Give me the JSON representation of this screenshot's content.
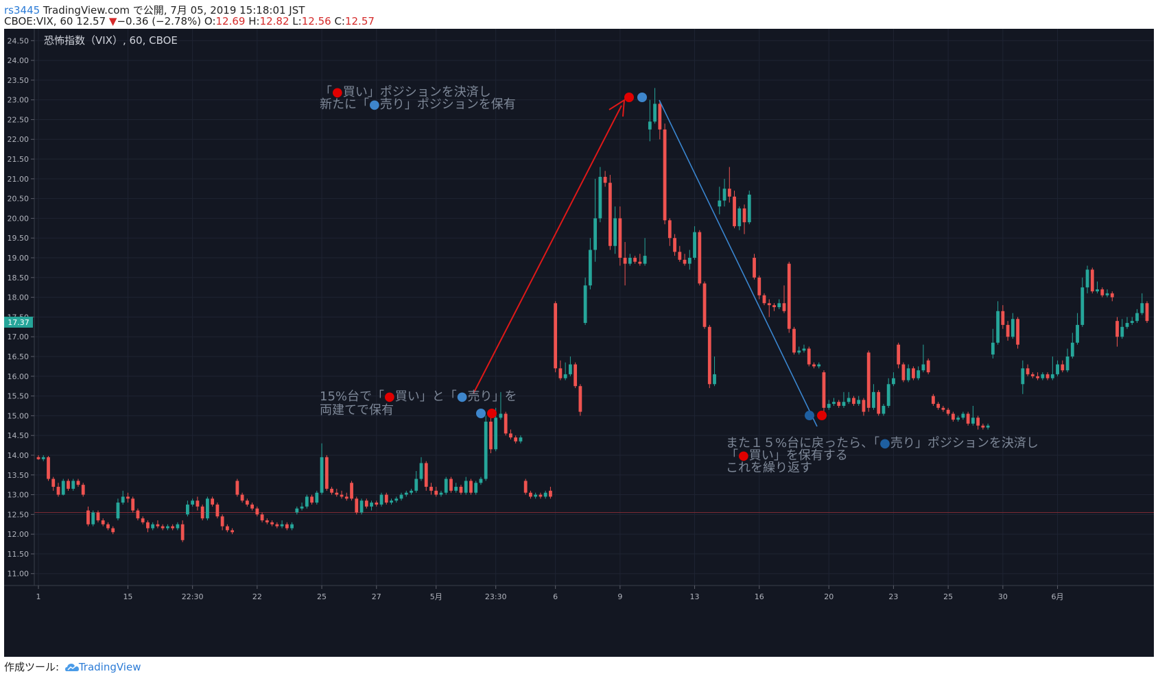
{
  "header": {
    "user": "rs3445",
    "published": " TradingView.com で公開, 7月 05, 2019 15:18:01 JST",
    "symbol": "CBOE:VIX, 60 12.57",
    "arrow": "▼",
    "change": "−0.36 (−2.78%)",
    "o_label": " O:",
    "o_value": "12.69",
    "h_label": " H:",
    "h_value": "12.82",
    "l_label": " L:",
    "l_value": "12.56",
    "c_label": " C:",
    "c_value": "12.57"
  },
  "footer": {
    "prefix": "作成ツール: ",
    "brand": "TradingView"
  },
  "chart_data": {
    "type": "candlestick",
    "title": "恐怖指数（VIX）, 60, CBOE",
    "ylim": [
      10.7,
      24.8
    ],
    "y_ticks": [
      "11.00",
      "11.50",
      "12.00",
      "12.50",
      "13.00",
      "13.50",
      "14.00",
      "14.50",
      "15.00",
      "15.50",
      "16.00",
      "16.50",
      "17.00",
      "17.50",
      "18.00",
      "18.50",
      "19.00",
      "19.50",
      "20.00",
      "20.50",
      "21.00",
      "21.50",
      "22.00",
      "22.50",
      "23.00",
      "23.50",
      "24.00",
      "24.50"
    ],
    "x_ticks": [
      {
        "label": "1",
        "i": 0
      },
      {
        "label": "15",
        "i": 18
      },
      {
        "label": "22:30",
        "i": 31
      },
      {
        "label": "22",
        "i": 44
      },
      {
        "label": "25",
        "i": 57
      },
      {
        "label": "27",
        "i": 68
      },
      {
        "label": "5月",
        "i": 80
      },
      {
        "label": "23:30",
        "i": 92
      },
      {
        "label": "6",
        "i": 104
      },
      {
        "label": "9",
        "i": 117
      },
      {
        "label": "13",
        "i": 132
      },
      {
        "label": "16",
        "i": 145
      },
      {
        "label": "20",
        "i": 159
      },
      {
        "label": "23",
        "i": 172
      },
      {
        "label": "25",
        "i": 183
      },
      {
        "label": "30",
        "i": 194
      },
      {
        "label": "6月",
        "i": 205
      }
    ],
    "current_price": "17.37",
    "reference_line": 12.55,
    "colors": {
      "up": "#26a69a",
      "down": "#ef5350",
      "background": "#131722",
      "buy": "#e00000",
      "sell": "#3e86cc"
    },
    "candles": [
      [
        13.95,
        13.9,
        14.0,
        13.88
      ],
      [
        13.9,
        13.95,
        14.0,
        13.85
      ],
      [
        13.95,
        13.4,
        13.98,
        13.35
      ],
      [
        13.4,
        13.2,
        13.45,
        13.1
      ],
      [
        13.2,
        13.0,
        13.3,
        12.95
      ],
      [
        13.0,
        13.35,
        13.4,
        12.98
      ],
      [
        13.35,
        13.15,
        13.4,
        13.1
      ],
      [
        13.15,
        13.35,
        13.4,
        13.1
      ],
      [
        13.35,
        13.25,
        13.4,
        13.2
      ],
      [
        13.25,
        13.0,
        13.3,
        12.95
      ],
      [
        12.6,
        12.25,
        12.7,
        12.2
      ],
      [
        12.25,
        12.55,
        12.6,
        12.2
      ],
      [
        12.55,
        12.35,
        12.6,
        12.3
      ],
      [
        12.35,
        12.25,
        12.4,
        12.2
      ],
      [
        12.25,
        12.15,
        12.3,
        12.1
      ],
      [
        12.15,
        12.05,
        12.2,
        12.0
      ],
      [
        12.4,
        12.8,
        12.9,
        12.35
      ],
      [
        12.8,
        12.95,
        13.1,
        12.75
      ],
      [
        12.95,
        12.9,
        13.05,
        12.8
      ],
      [
        12.9,
        12.6,
        12.95,
        12.55
      ],
      [
        12.6,
        12.4,
        12.65,
        12.35
      ],
      [
        12.4,
        12.3,
        12.45,
        12.25
      ],
      [
        12.3,
        12.15,
        12.35,
        12.05
      ],
      [
        12.15,
        12.25,
        12.3,
        12.1
      ],
      [
        12.25,
        12.2,
        12.35,
        12.15
      ],
      [
        12.2,
        12.15,
        12.25,
        12.1
      ],
      [
        12.15,
        12.2,
        12.25,
        12.1
      ],
      [
        12.2,
        12.15,
        12.25,
        12.1
      ],
      [
        12.15,
        12.25,
        12.3,
        12.1
      ],
      [
        12.25,
        11.85,
        12.35,
        11.8
      ],
      [
        12.5,
        12.75,
        12.85,
        12.45
      ],
      [
        12.75,
        12.85,
        12.9,
        12.7
      ],
      [
        12.85,
        12.7,
        12.95,
        12.6
      ],
      [
        12.7,
        12.4,
        12.75,
        12.35
      ],
      [
        12.4,
        12.9,
        12.95,
        12.35
      ],
      [
        12.9,
        12.75,
        12.95,
        12.7
      ],
      [
        12.75,
        12.45,
        12.8,
        12.4
      ],
      [
        12.45,
        12.2,
        12.5,
        12.1
      ],
      [
        12.2,
        12.1,
        12.25,
        12.05
      ],
      [
        12.1,
        12.05,
        12.15,
        12.0
      ],
      [
        13.35,
        13.0,
        13.4,
        12.95
      ],
      [
        13.0,
        12.85,
        13.05,
        12.8
      ],
      [
        12.85,
        12.75,
        12.9,
        12.7
      ],
      [
        12.75,
        12.65,
        12.8,
        12.6
      ],
      [
        12.65,
        12.5,
        12.7,
        12.45
      ],
      [
        12.5,
        12.35,
        12.55,
        12.3
      ],
      [
        12.35,
        12.3,
        12.4,
        12.25
      ],
      [
        12.3,
        12.25,
        12.35,
        12.2
      ],
      [
        12.25,
        12.2,
        12.3,
        12.15
      ],
      [
        12.2,
        12.25,
        12.35,
        12.15
      ],
      [
        12.25,
        12.15,
        12.3,
        12.1
      ],
      [
        12.15,
        12.25,
        12.3,
        12.1
      ],
      [
        12.55,
        12.65,
        12.7,
        12.5
      ],
      [
        12.65,
        12.7,
        12.8,
        12.6
      ],
      [
        12.7,
        12.95,
        13.0,
        12.65
      ],
      [
        12.95,
        12.8,
        13.0,
        12.75
      ],
      [
        12.8,
        13.05,
        13.1,
        12.75
      ],
      [
        13.05,
        13.95,
        14.3,
        13.0
      ],
      [
        13.95,
        13.15,
        14.0,
        13.1
      ],
      [
        13.15,
        13.05,
        13.2,
        13.0
      ],
      [
        13.05,
        13.0,
        13.15,
        12.95
      ],
      [
        13.0,
        12.95,
        13.1,
        12.9
      ],
      [
        12.95,
        12.9,
        13.05,
        12.85
      ],
      [
        13.3,
        12.9,
        13.35,
        12.85
      ],
      [
        12.9,
        12.55,
        12.95,
        12.5
      ],
      [
        12.55,
        12.85,
        12.9,
        12.5
      ],
      [
        12.85,
        12.7,
        12.9,
        12.65
      ],
      [
        12.7,
        12.8,
        12.85,
        12.6
      ],
      [
        12.8,
        12.75,
        12.85,
        12.7
      ],
      [
        12.75,
        13.0,
        13.05,
        12.7
      ],
      [
        13.0,
        12.8,
        13.05,
        12.75
      ],
      [
        12.8,
        12.85,
        12.9,
        12.75
      ],
      [
        12.85,
        12.9,
        12.95,
        12.8
      ],
      [
        12.9,
        13.0,
        13.05,
        12.85
      ],
      [
        13.0,
        13.05,
        13.1,
        12.95
      ],
      [
        13.05,
        13.1,
        13.15,
        13.0
      ],
      [
        13.1,
        13.4,
        13.6,
        13.05
      ],
      [
        13.4,
        13.8,
        13.95,
        13.35
      ],
      [
        13.8,
        13.2,
        13.85,
        13.1
      ],
      [
        13.2,
        13.1,
        13.3,
        13.0
      ],
      [
        13.1,
        13.0,
        13.2,
        12.95
      ],
      [
        13.0,
        13.05,
        13.1,
        12.95
      ],
      [
        13.05,
        13.4,
        13.45,
        13.0
      ],
      [
        13.4,
        13.1,
        13.45,
        13.05
      ],
      [
        13.1,
        13.2,
        13.3,
        13.05
      ],
      [
        13.2,
        13.05,
        13.25,
        13.0
      ],
      [
        13.05,
        13.35,
        13.45,
        13.0
      ],
      [
        13.35,
        13.05,
        13.4,
        13.0
      ],
      [
        13.05,
        13.3,
        13.35,
        13.0
      ],
      [
        13.3,
        13.4,
        13.45,
        13.25
      ],
      [
        13.4,
        14.85,
        15.0,
        13.35
      ],
      [
        14.85,
        14.15,
        14.95,
        14.05
      ],
      [
        14.15,
        14.95,
        15.2,
        14.1
      ],
      [
        14.95,
        15.05,
        15.6,
        14.9
      ],
      [
        15.05,
        14.55,
        15.1,
        14.5
      ],
      [
        14.55,
        14.45,
        14.65,
        14.4
      ],
      [
        14.45,
        14.35,
        14.5,
        14.3
      ],
      [
        14.35,
        14.45,
        14.5,
        14.3
      ],
      [
        13.35,
        13.05,
        13.4,
        13.0
      ],
      [
        13.05,
        12.95,
        13.1,
        12.9
      ],
      [
        12.95,
        13.0,
        13.05,
        12.9
      ],
      [
        13.0,
        12.95,
        13.05,
        12.9
      ],
      [
        12.95,
        13.05,
        13.1,
        12.9
      ],
      [
        13.1,
        12.95,
        13.2,
        12.9
      ],
      [
        17.85,
        16.2,
        17.9,
        16.1
      ],
      [
        16.2,
        15.95,
        16.4,
        15.9
      ],
      [
        15.95,
        16.05,
        16.35,
        15.9
      ],
      [
        16.05,
        16.3,
        16.5,
        16.0
      ],
      [
        16.3,
        15.75,
        16.35,
        15.7
      ],
      [
        15.75,
        15.1,
        15.8,
        15.0
      ],
      [
        17.35,
        18.3,
        18.5,
        17.3
      ],
      [
        18.3,
        19.2,
        19.5,
        18.2
      ],
      [
        19.2,
        20.0,
        21.0,
        18.9
      ],
      [
        20.0,
        21.05,
        21.3,
        19.9
      ],
      [
        21.05,
        20.9,
        21.2,
        20.8
      ],
      [
        20.9,
        19.3,
        21.1,
        19.2
      ],
      [
        19.3,
        20.0,
        20.3,
        19.1
      ],
      [
        20.0,
        19.0,
        20.3,
        18.8
      ],
      [
        19.0,
        18.85,
        19.4,
        18.3
      ],
      [
        18.85,
        19.0,
        19.1,
        18.8
      ],
      [
        19.0,
        18.9,
        19.05,
        18.85
      ],
      [
        18.9,
        18.85,
        19.1,
        18.8
      ],
      [
        18.85,
        19.05,
        19.5,
        18.8
      ],
      [
        22.25,
        22.45,
        23.0,
        21.95
      ],
      [
        22.45,
        22.9,
        23.3,
        22.4
      ],
      [
        22.9,
        22.25,
        22.95,
        22.0
      ],
      [
        22.25,
        19.95,
        22.4,
        19.85
      ],
      [
        19.95,
        19.5,
        20.0,
        19.3
      ],
      [
        19.5,
        19.15,
        19.6,
        19.05
      ],
      [
        19.15,
        18.95,
        19.3,
        18.9
      ],
      [
        18.95,
        18.85,
        19.1,
        18.8
      ],
      [
        18.85,
        19.0,
        19.2,
        18.7
      ],
      [
        19.0,
        19.65,
        19.8,
        18.95
      ],
      [
        19.65,
        18.35,
        19.7,
        18.3
      ],
      [
        18.35,
        17.25,
        18.4,
        17.2
      ],
      [
        17.25,
        15.8,
        17.3,
        15.7
      ],
      [
        15.8,
        16.05,
        16.5,
        15.75
      ],
      [
        20.3,
        20.45,
        20.8,
        20.1
      ],
      [
        20.45,
        20.75,
        21.0,
        20.3
      ],
      [
        20.75,
        20.55,
        21.3,
        20.4
      ],
      [
        20.55,
        19.8,
        20.7,
        19.75
      ],
      [
        19.8,
        20.25,
        20.3,
        19.7
      ],
      [
        20.25,
        19.9,
        20.35,
        19.6
      ],
      [
        19.9,
        20.6,
        20.7,
        19.85
      ],
      [
        19.0,
        18.5,
        19.1,
        18.45
      ],
      [
        18.5,
        18.05,
        18.55,
        17.95
      ],
      [
        18.05,
        17.85,
        18.1,
        17.8
      ],
      [
        17.85,
        17.8,
        17.95,
        17.5
      ],
      [
        17.8,
        17.75,
        17.85,
        17.65
      ],
      [
        17.75,
        17.85,
        17.95,
        17.7
      ],
      [
        17.85,
        17.65,
        18.3,
        17.6
      ],
      [
        18.85,
        17.2,
        18.9,
        17.1
      ],
      [
        17.2,
        16.6,
        17.25,
        16.55
      ],
      [
        16.6,
        16.65,
        16.75,
        16.55
      ],
      [
        16.65,
        16.7,
        16.8,
        16.6
      ],
      [
        16.7,
        16.3,
        16.75,
        16.25
      ],
      [
        16.3,
        16.25,
        16.35,
        16.2
      ],
      [
        16.25,
        16.3,
        16.35,
        16.2
      ],
      [
        16.1,
        15.2,
        16.15,
        15.1
      ],
      [
        15.2,
        15.3,
        15.4,
        15.15
      ],
      [
        15.3,
        15.35,
        15.45,
        15.25
      ],
      [
        15.35,
        15.25,
        15.4,
        15.2
      ],
      [
        15.25,
        15.35,
        15.6,
        15.2
      ],
      [
        15.35,
        15.45,
        15.6,
        15.3
      ],
      [
        15.45,
        15.3,
        15.5,
        15.25
      ],
      [
        15.3,
        15.4,
        15.5,
        15.25
      ],
      [
        15.4,
        15.1,
        15.45,
        15.0
      ],
      [
        16.6,
        15.2,
        16.65,
        15.1
      ],
      [
        15.2,
        15.6,
        15.8,
        15.15
      ],
      [
        15.6,
        15.05,
        15.65,
        15.0
      ],
      [
        15.05,
        15.25,
        15.3,
        15.0
      ],
      [
        15.25,
        15.8,
        15.95,
        15.2
      ],
      [
        15.8,
        15.95,
        16.1,
        15.75
      ],
      [
        16.8,
        16.3,
        16.85,
        16.2
      ],
      [
        16.3,
        15.9,
        16.35,
        15.85
      ],
      [
        15.9,
        16.2,
        16.3,
        15.85
      ],
      [
        16.2,
        15.95,
        16.25,
        15.9
      ],
      [
        15.95,
        16.15,
        16.25,
        15.9
      ],
      [
        16.15,
        16.3,
        16.8,
        16.1
      ],
      [
        16.4,
        16.1,
        16.45,
        16.05
      ],
      [
        15.5,
        15.3,
        15.55,
        15.25
      ],
      [
        15.3,
        15.2,
        15.35,
        15.15
      ],
      [
        15.2,
        15.15,
        15.25,
        15.1
      ],
      [
        15.15,
        15.05,
        15.2,
        15.0
      ],
      [
        15.05,
        14.9,
        15.1,
        14.85
      ],
      [
        14.9,
        14.95,
        15.0,
        14.85
      ],
      [
        14.95,
        15.05,
        15.1,
        14.9
      ],
      [
        15.05,
        14.8,
        15.1,
        14.75
      ],
      [
        14.8,
        14.95,
        15.25,
        14.75
      ],
      [
        14.95,
        14.75,
        15.0,
        14.65
      ],
      [
        14.75,
        14.7,
        14.8,
        14.65
      ],
      [
        14.7,
        14.75,
        14.8,
        14.65
      ],
      [
        16.55,
        16.85,
        17.2,
        16.45
      ],
      [
        16.85,
        17.65,
        17.9,
        16.8
      ],
      [
        17.65,
        17.3,
        17.8,
        17.2
      ],
      [
        17.3,
        17.0,
        17.4,
        16.9
      ],
      [
        17.0,
        17.45,
        17.6,
        16.95
      ],
      [
        17.45,
        16.8,
        17.5,
        16.7
      ],
      [
        15.8,
        16.2,
        16.4,
        15.55
      ],
      [
        16.2,
        16.05,
        16.3,
        16.0
      ],
      [
        16.05,
        16.0,
        16.1,
        15.95
      ],
      [
        16.0,
        15.95,
        16.1,
        15.9
      ],
      [
        15.95,
        16.05,
        16.1,
        15.9
      ],
      [
        16.05,
        15.95,
        16.1,
        15.9
      ],
      [
        15.95,
        16.05,
        16.5,
        15.9
      ],
      [
        16.05,
        16.3,
        16.4,
        16.0
      ],
      [
        16.3,
        16.15,
        16.4,
        16.1
      ],
      [
        16.15,
        16.5,
        16.7,
        16.1
      ],
      [
        16.5,
        16.85,
        17.1,
        16.45
      ],
      [
        16.85,
        17.3,
        17.6,
        16.8
      ],
      [
        17.3,
        18.25,
        18.5,
        17.25
      ],
      [
        18.25,
        18.7,
        18.8,
        18.1
      ],
      [
        18.7,
        18.15,
        18.75,
        18.1
      ],
      [
        18.15,
        18.2,
        18.4,
        18.1
      ],
      [
        18.2,
        18.05,
        18.25,
        18.0
      ],
      [
        18.05,
        18.1,
        18.2,
        18.0
      ],
      [
        18.1,
        18.0,
        18.15,
        17.9
      ],
      [
        17.4,
        17.0,
        17.5,
        16.75
      ],
      [
        17.0,
        17.25,
        17.45,
        16.95
      ],
      [
        17.25,
        17.35,
        17.5,
        17.2
      ],
      [
        17.35,
        17.4,
        17.5,
        17.3
      ],
      [
        17.4,
        17.6,
        17.7,
        17.35
      ],
      [
        17.6,
        17.85,
        18.1,
        17.55
      ],
      [
        17.85,
        17.4,
        17.9,
        17.35
      ]
    ],
    "annotations": [
      {
        "text": "15%台で「",
        "text2": "買い」と「",
        "text3": "売り」を",
        "line2": "両建てで保有"
      },
      {
        "line1a": "「",
        "line1b": "買い」ポジションを決済し",
        "line2a": "新たに「",
        "line2b": "売り」ポジションを保有"
      },
      {
        "line1a": "また１５%台に戻ったら、「",
        "line1b": "売り」ポジションを決済し",
        "line2a": "「",
        "line2b": "買い」を保有する",
        "line3": "これを繰り返す"
      }
    ]
  }
}
